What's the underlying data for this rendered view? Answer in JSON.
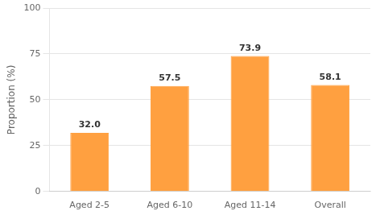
{
  "chart_data": {
    "type": "bar",
    "categories": [
      "Aged 2-5",
      "Aged 6-10",
      "Aged 11-14",
      "Overall"
    ],
    "values": [
      32.0,
      57.5,
      73.9,
      58.1
    ],
    "value_labels": [
      "32.0",
      "57.5",
      "73.9",
      "58.1"
    ],
    "color": "#FFA040",
    "ylabel": "Proportion (%)",
    "ylim": [
      0,
      100
    ],
    "yticks": [
      0,
      25,
      50,
      75,
      100
    ],
    "grid": true,
    "data_labels": true
  }
}
